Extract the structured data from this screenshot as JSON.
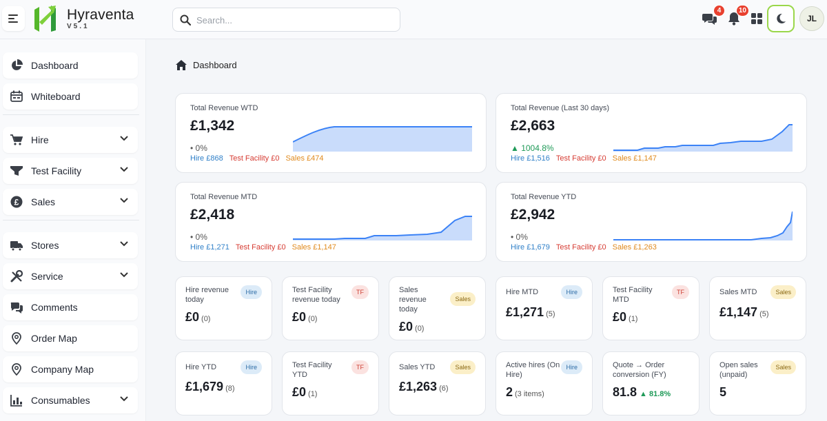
{
  "app": {
    "name": "Hyraventa",
    "version": "V5.1"
  },
  "search": {
    "placeholder": "Search..."
  },
  "topbar": {
    "messages_count": "4",
    "notifications_count": "10",
    "avatar_initials": "JL"
  },
  "sidebar": {
    "items": [
      {
        "label": "Dashboard",
        "icon": "pie-chart-icon"
      },
      {
        "label": "Whiteboard",
        "icon": "whiteboard-icon"
      },
      {
        "label": "Hire",
        "icon": "cart-icon"
      },
      {
        "label": "Test Facility",
        "icon": "funnel-icon"
      },
      {
        "label": "Sales",
        "icon": "pound-icon"
      },
      {
        "label": "Stores",
        "icon": "truck-icon"
      },
      {
        "label": "Service",
        "icon": "tools-icon"
      },
      {
        "label": "Comments",
        "icon": "comments-icon"
      },
      {
        "label": "Order Map",
        "icon": "map-pin-icon"
      },
      {
        "label": "Company Map",
        "icon": "map-pin-icon"
      },
      {
        "label": "Consumables",
        "icon": "bar-chart-icon"
      }
    ]
  },
  "breadcrumb": {
    "label": "Dashboard"
  },
  "big_cards": [
    {
      "title": "Total Revenue WTD",
      "value": "£1,342",
      "change": "• 0%",
      "hire": "Hire £868",
      "tf": "Test Facility £0",
      "sales": "Sales £474"
    },
    {
      "title": "Total Revenue (Last 30 days)",
      "value": "£2,663",
      "change": "▲ 1004.8%",
      "hire": "Hire £1,516",
      "tf": "Test Facility £0",
      "sales": "Sales £1,147"
    },
    {
      "title": "Total Revenue MTD",
      "value": "£2,418",
      "change": "• 0%",
      "hire": "Hire £1,271",
      "tf": "Test Facility £0",
      "sales": "Sales £1,147"
    },
    {
      "title": "Total Revenue YTD",
      "value": "£2,942",
      "change": "• 0%",
      "hire": "Hire £1,679",
      "tf": "Test Facility £0",
      "sales": "Sales £1,263"
    }
  ],
  "small_cards": [
    {
      "title": "Hire revenue today",
      "tag": "Hire",
      "value": "£0",
      "count": "(0)"
    },
    {
      "title": "Test Facility revenue today",
      "tag": "TF",
      "value": "£0",
      "count": "(0)"
    },
    {
      "title": "Sales revenue today",
      "tag": "Sales",
      "value": "£0",
      "count": "(0)"
    },
    {
      "title": "Hire MTD",
      "tag": "Hire",
      "value": "£1,271",
      "count": "(5)"
    },
    {
      "title": "Test Facility MTD",
      "tag": "TF",
      "value": "£0",
      "count": "(1)"
    },
    {
      "title": "Sales MTD",
      "tag": "Sales",
      "value": "£1,147",
      "count": "(5)"
    },
    {
      "title": "Hire YTD",
      "tag": "Hire",
      "value": "£1,679",
      "count": "(8)"
    },
    {
      "title": "Test Facility YTD",
      "tag": "TF",
      "value": "£0",
      "count": "(1)"
    },
    {
      "title": "Sales YTD",
      "tag": "Sales",
      "value": "£1,263",
      "count": "(6)"
    },
    {
      "title": "Active hires (On Hire)",
      "tag": "Hire",
      "value": "2",
      "count": "(3 items)"
    },
    {
      "title": "Quote → Order conversion (FY)",
      "value": "81.8",
      "pct": "▲ 81.8%"
    },
    {
      "title": "Open sales (unpaid)",
      "tag": "Sales",
      "value": "5"
    }
  ],
  "colors": {
    "accent": "#3b82f6",
    "brand_green": "#5cc02b",
    "theme_border": "#9ad74a"
  }
}
